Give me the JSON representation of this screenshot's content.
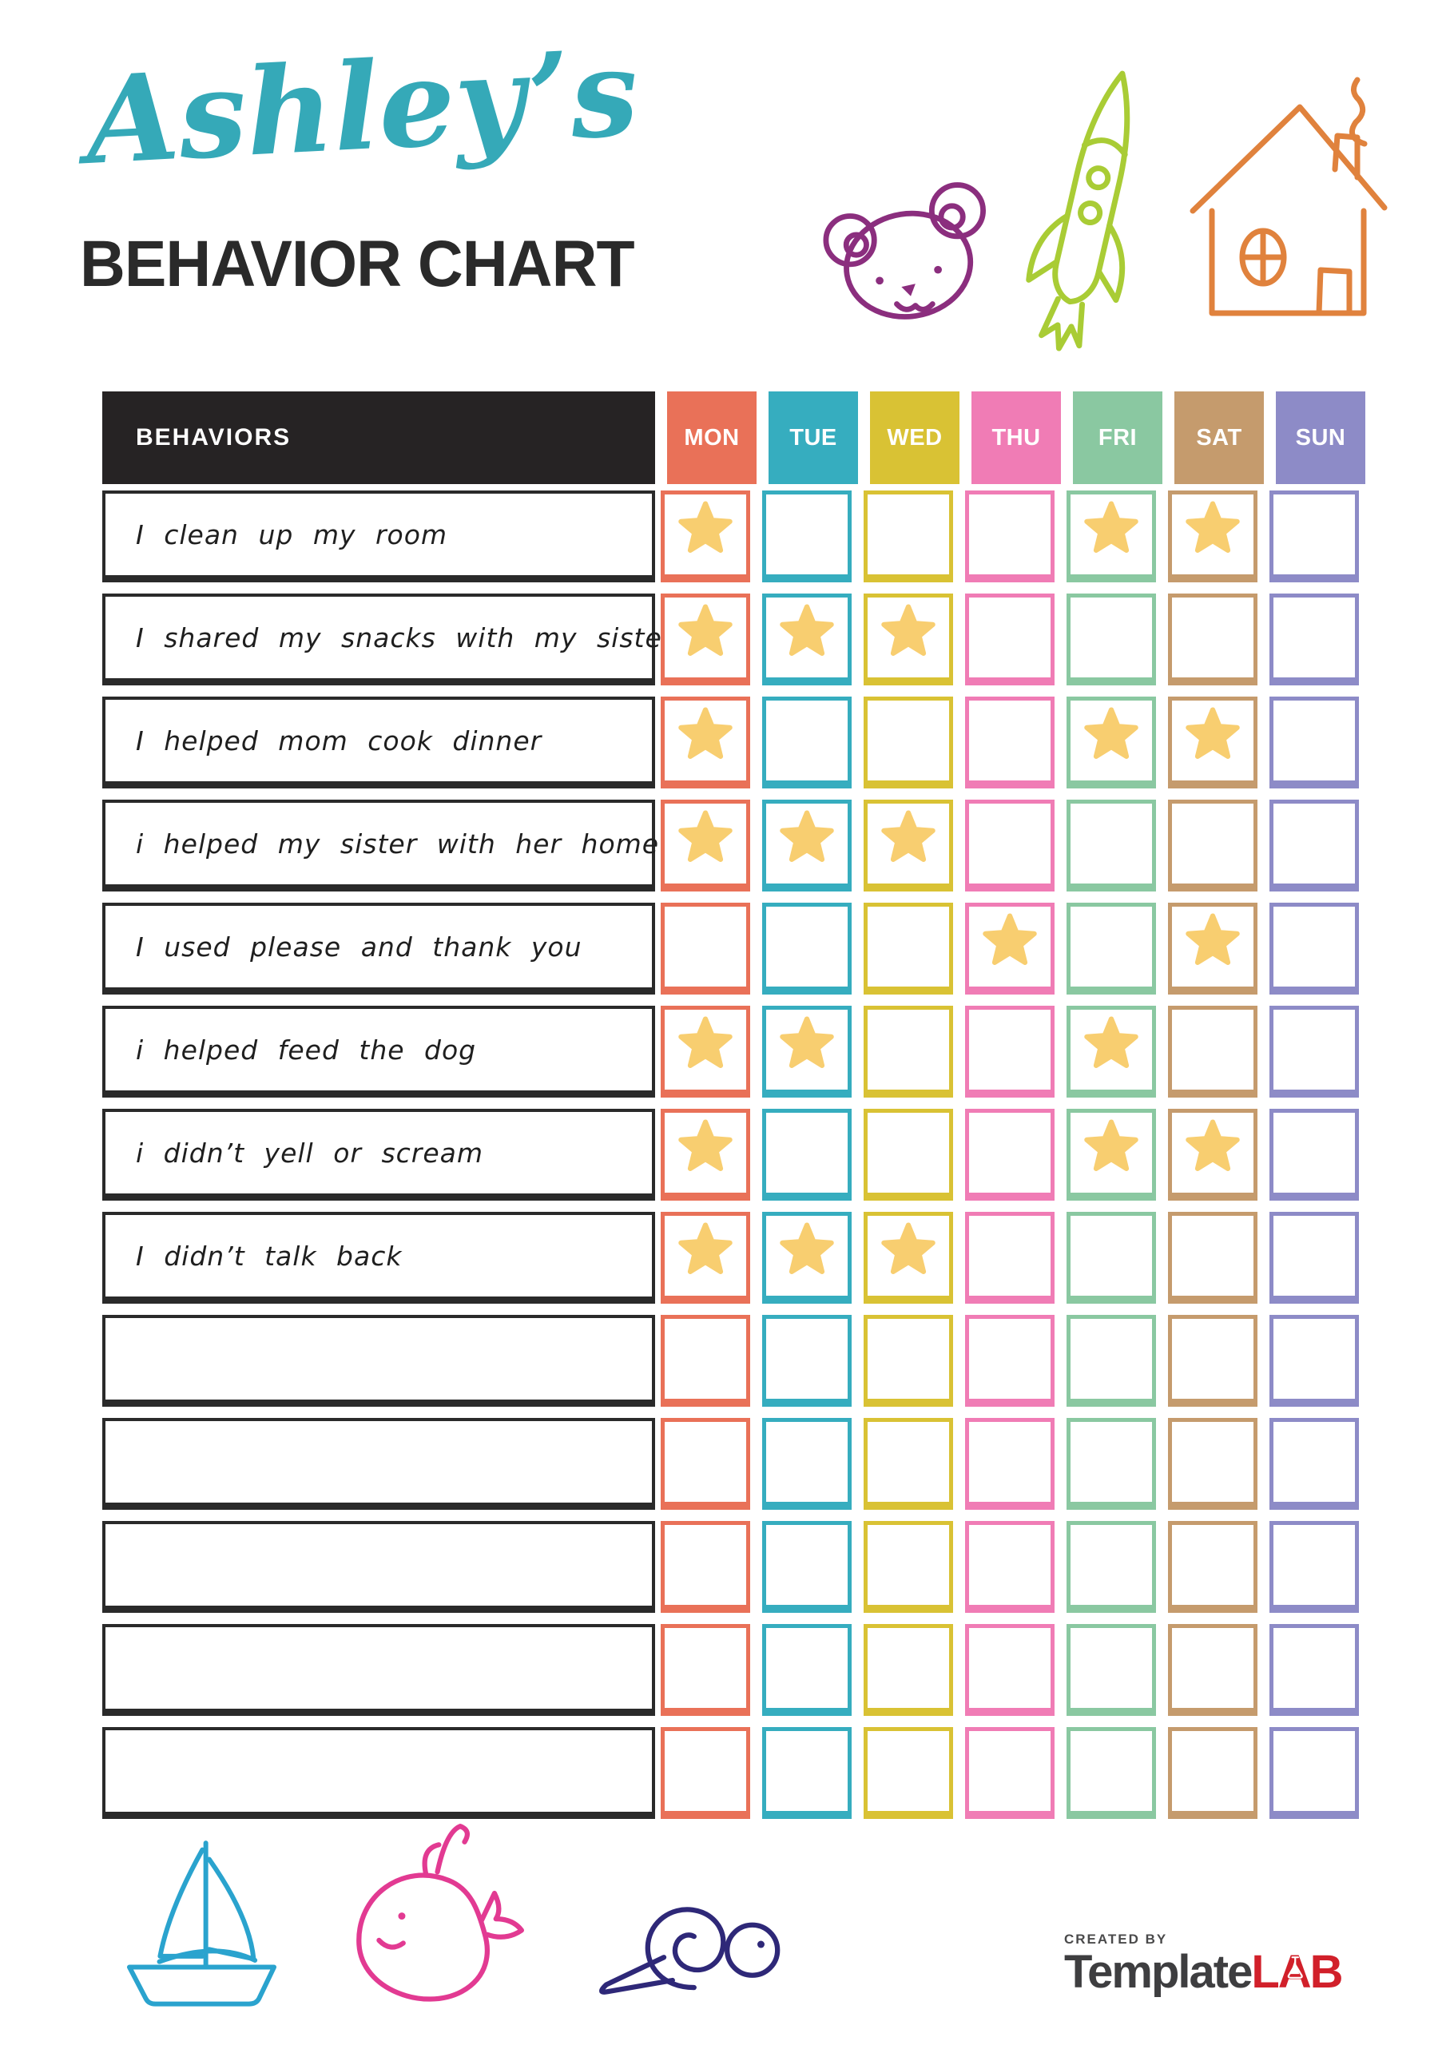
{
  "title": {
    "name": "Ashley’s",
    "chart": "BEHAVIOR CHART"
  },
  "title_colors": {
    "name": "#35a9b8",
    "chart": "#2a2a2a"
  },
  "table": {
    "behaviors_header": "BEHAVIORS",
    "header_bg": "#262324",
    "star_color": "#f8ce70",
    "days": [
      {
        "label": "MON",
        "color": "#e97158"
      },
      {
        "label": "TUE",
        "color": "#36adbf"
      },
      {
        "label": "WED",
        "color": "#d9c234"
      },
      {
        "label": "THU",
        "color": "#f07cb5"
      },
      {
        "label": "FRI",
        "color": "#8ac8a1"
      },
      {
        "label": "SAT",
        "color": "#c59b6d"
      },
      {
        "label": "SUN",
        "color": "#8d8bc7"
      }
    ],
    "rows": [
      {
        "behavior": "I clean up my room",
        "stars": [
          1,
          0,
          0,
          0,
          1,
          1,
          0
        ]
      },
      {
        "behavior": "I shared my snacks with my sister",
        "stars": [
          1,
          1,
          1,
          0,
          0,
          0,
          0
        ]
      },
      {
        "behavior": "I helped mom cook dinner",
        "stars": [
          1,
          0,
          0,
          0,
          1,
          1,
          0
        ]
      },
      {
        "behavior": "i helped my sister with her homework",
        "stars": [
          1,
          1,
          1,
          0,
          0,
          0,
          0
        ]
      },
      {
        "behavior": "I used please and thank you",
        "stars": [
          0,
          0,
          0,
          1,
          0,
          1,
          0
        ]
      },
      {
        "behavior": "i helped feed the dog",
        "stars": [
          1,
          1,
          0,
          0,
          1,
          0,
          0
        ]
      },
      {
        "behavior": "i didn’t yell or scream",
        "stars": [
          1,
          0,
          0,
          0,
          1,
          1,
          0
        ]
      },
      {
        "behavior": "I didn’t talk back",
        "stars": [
          1,
          1,
          1,
          0,
          0,
          0,
          0
        ]
      },
      {
        "behavior": "",
        "stars": [
          0,
          0,
          0,
          0,
          0,
          0,
          0
        ]
      },
      {
        "behavior": "",
        "stars": [
          0,
          0,
          0,
          0,
          0,
          0,
          0
        ]
      },
      {
        "behavior": "",
        "stars": [
          0,
          0,
          0,
          0,
          0,
          0,
          0
        ]
      },
      {
        "behavior": "",
        "stars": [
          0,
          0,
          0,
          0,
          0,
          0,
          0
        ]
      },
      {
        "behavior": "",
        "stars": [
          0,
          0,
          0,
          0,
          0,
          0,
          0
        ]
      }
    ]
  },
  "decorations": {
    "bear": {
      "color": "#8b2e7e"
    },
    "rocket": {
      "color": "#a9cc35"
    },
    "house": {
      "color": "#e0823d"
    },
    "sailboat": {
      "color": "#2aa3ce"
    },
    "whale": {
      "color": "#e23a92"
    },
    "snail": {
      "color": "#2e2878"
    }
  },
  "branding": {
    "created_by": "CREATED BY",
    "brand_name_1": "Template",
    "brand_name_2": "LAB",
    "color_dark": "#3e3e40",
    "color_red": "#d1202a",
    "color_created": "#4a4a4b"
  }
}
